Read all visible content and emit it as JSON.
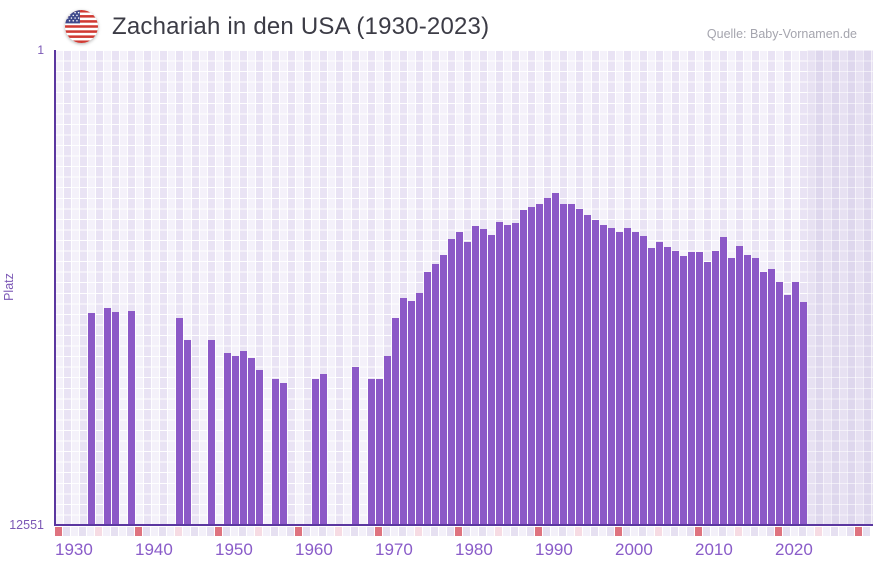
{
  "header": {
    "flag_icon": "us-flag-icon",
    "title": "Zachariah in den USA (1930-2023)",
    "source": "Quelle: Baby-Vornamen.de"
  },
  "y_axis": {
    "label": "Platz",
    "top_tick": "1",
    "bottom_tick": "12551"
  },
  "x_axis": {
    "decade_labels": [
      "1930",
      "1940",
      "1950",
      "1960",
      "1970",
      "1980",
      "1990",
      "2000",
      "2010",
      "2020"
    ]
  },
  "chart_data": {
    "type": "bar",
    "title": "Zachariah in den USA (1930-2023)",
    "xlabel": "",
    "ylabel": "Platz",
    "ylim": [
      1,
      12551
    ],
    "y_axis_inverted": true,
    "grid": true,
    "legend": false,
    "start_year": 1930,
    "end_year": 2023,
    "series_name": "Platz (Rang des Namens Zachariah)",
    "note_missing": "null = keine Platzierung in diesem Jahr",
    "ranks": [
      null,
      null,
      null,
      null,
      6950,
      null,
      6820,
      6930,
      null,
      6890,
      null,
      null,
      null,
      null,
      null,
      7080,
      7660,
      null,
      null,
      7660,
      null,
      8010,
      8090,
      7950,
      8140,
      8460,
      null,
      8690,
      8800,
      null,
      null,
      null,
      8690,
      8560,
      null,
      null,
      null,
      8380,
      null,
      8690,
      8690,
      8090,
      7080,
      6550,
      6630,
      6420,
      5870,
      5660,
      5420,
      5000,
      4810,
      5070,
      4650,
      4730,
      4890,
      4550,
      4630,
      4570,
      4230,
      4150,
      4070,
      3910,
      3780,
      4070,
      4070,
      4200,
      4360,
      4490,
      4630,
      4710,
      4810,
      4710,
      4810,
      4920,
      5230,
      5070,
      5210,
      5310,
      5440,
      5340,
      5340,
      5600,
      5310,
      4940,
      5500,
      5180,
      5420,
      5500,
      5870,
      5790,
      6130,
      6470,
      6130,
      6660
    ],
    "bottom_strip": {
      "decade_marker_years_end_in": 0,
      "half_decade_marker_years_end_in": 5,
      "strip_end_year": 2031
    }
  },
  "colors": {
    "bar": "#8c59c7",
    "axis_line": "#5b37a0",
    "axis_text": "#7b57b5",
    "x_tick_text": "#8a5cc9",
    "title_text": "#3c3c46",
    "source_text": "#a5a5ae",
    "grid_cell_light": "#f4f1fa",
    "grid_cell_lavender": "#e9e3f4",
    "future_cell_light": "#e7e1f2",
    "future_cell_lavender": "#ded7ed",
    "strip_decade": "#df737f",
    "strip_half_decade": "#f6dbe3",
    "strip_even": "#f3f0f9",
    "strip_odd": "#e6e0f1"
  }
}
